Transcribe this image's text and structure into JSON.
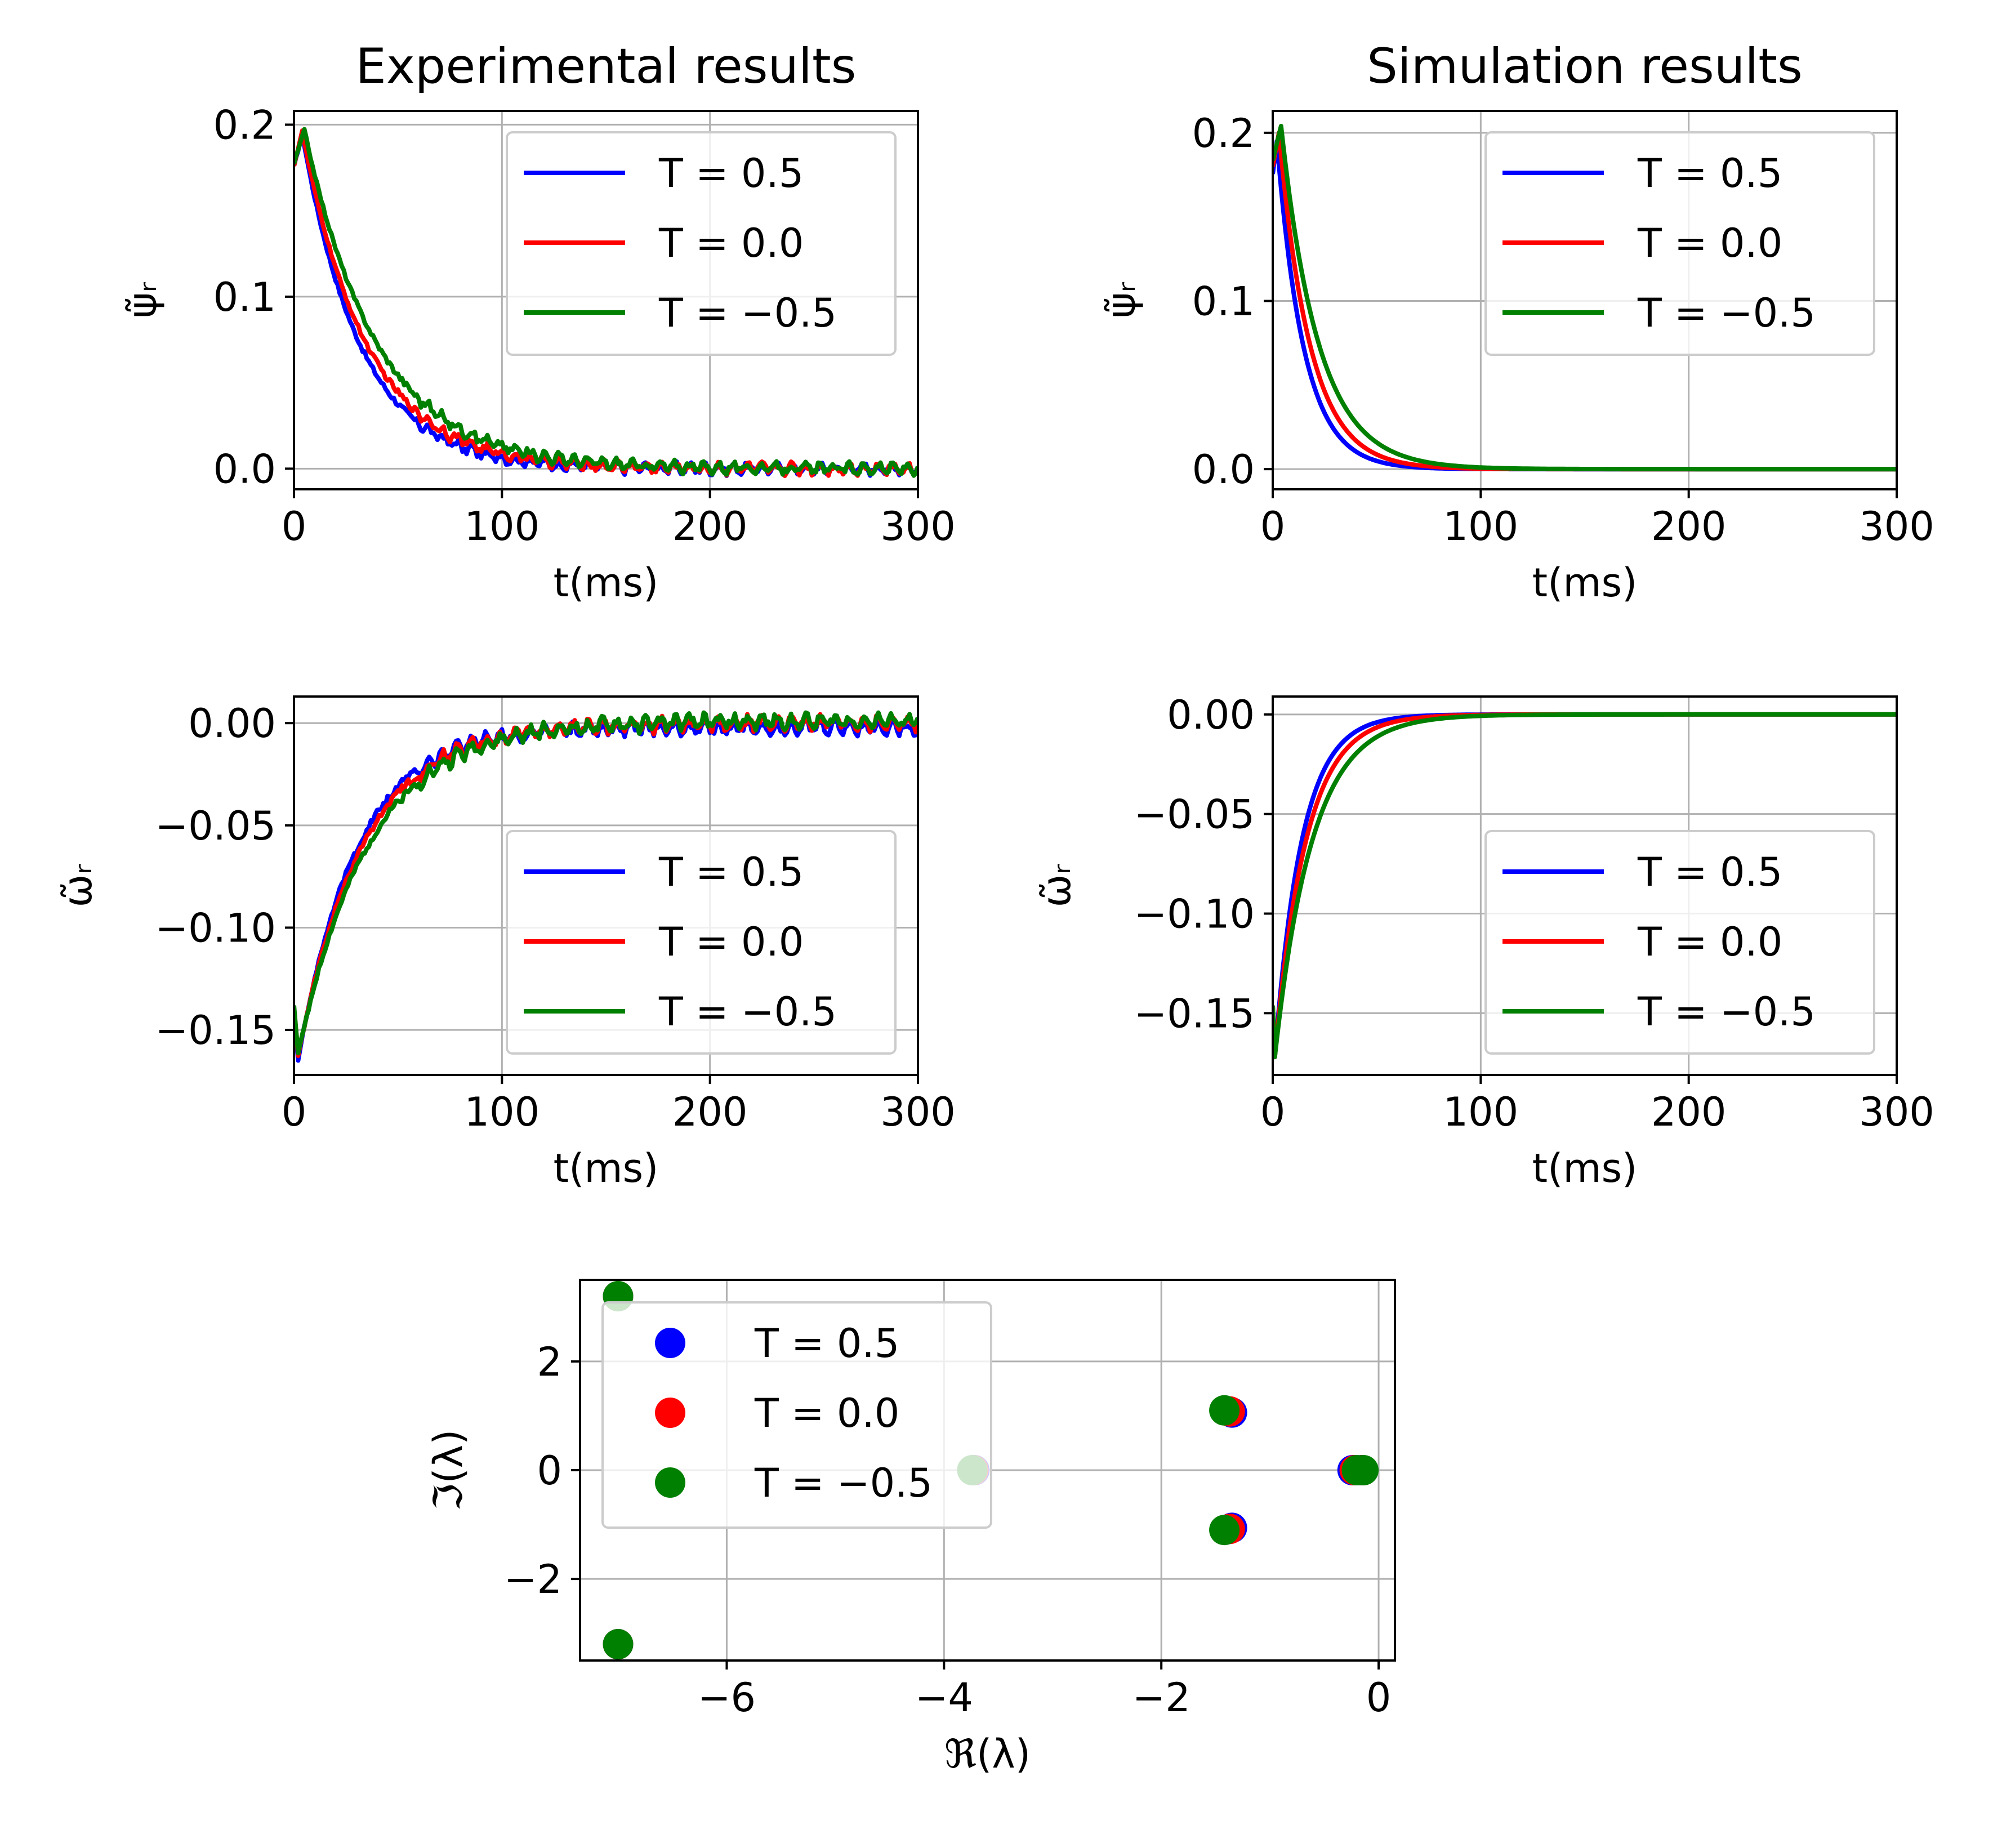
{
  "colors": {
    "blue": "#0000ff",
    "red": "#ff0000",
    "green": "#008000",
    "grid": "#b0b0b0"
  },
  "legend_entries": [
    "T = 0.5",
    "T = 0.0",
    "T = −0.5"
  ],
  "chart_data": [
    {
      "id": "exp_psi",
      "type": "line",
      "title": "Experimental results",
      "xlabel": "t(ms)",
      "ylabel": "ψ̃ᵣ",
      "xlim": [
        0,
        300
      ],
      "ylim": [
        -0.012,
        0.208
      ],
      "xticks": [
        0,
        100,
        200,
        300
      ],
      "yticks": [
        0.0,
        0.1,
        0.2
      ],
      "ytick_labels": [
        "0.0",
        "0.1",
        "0.2"
      ],
      "legend_loc": "upper right",
      "grid": true,
      "noise": 0.002,
      "series": [
        {
          "name": "T = 0.5",
          "color": "#0000ff",
          "kind": "decay",
          "amp": 0.195,
          "tau": 28,
          "peak_t": 4
        },
        {
          "name": "T = 0.0",
          "color": "#ff0000",
          "kind": "decay",
          "amp": 0.196,
          "tau": 31,
          "peak_t": 4
        },
        {
          "name": "T = −0.5",
          "color": "#008000",
          "kind": "decay",
          "amp": 0.197,
          "tau": 35,
          "peak_t": 5
        }
      ]
    },
    {
      "id": "sim_psi",
      "type": "line",
      "title": "Simulation results",
      "xlabel": "t(ms)",
      "ylabel": "ψ̃ᵣ",
      "xlim": [
        0,
        300
      ],
      "ylim": [
        -0.012,
        0.213
      ],
      "xticks": [
        0,
        100,
        200,
        300
      ],
      "yticks": [
        0.0,
        0.1,
        0.2
      ],
      "ytick_labels": [
        "0.0",
        "0.1",
        "0.2"
      ],
      "legend_loc": "upper right",
      "grid": true,
      "noise": 0,
      "series": [
        {
          "name": "T = 0.5",
          "color": "#0000ff",
          "kind": "decay",
          "amp": 0.195,
          "tau": 13,
          "peak_t": 2
        },
        {
          "name": "T = 0.0",
          "color": "#ff0000",
          "kind": "decay",
          "amp": 0.2,
          "tau": 15,
          "peak_t": 3
        },
        {
          "name": "T = −0.5",
          "color": "#008000",
          "kind": "decay",
          "amp": 0.204,
          "tau": 18,
          "peak_t": 4
        }
      ]
    },
    {
      "id": "exp_omega",
      "type": "line",
      "xlabel": "t(ms)",
      "ylabel": "ω̃ᵣ",
      "xlim": [
        0,
        300
      ],
      "ylim": [
        -0.172,
        0.013
      ],
      "xticks": [
        0,
        100,
        200,
        300
      ],
      "yticks": [
        -0.15,
        -0.1,
        -0.05,
        0.0
      ],
      "ytick_labels": [
        "−0.15",
        "−0.10",
        "−0.05",
        "0.00"
      ],
      "legend_loc": "lower right",
      "grid": true,
      "noise": 0.0022,
      "series": [
        {
          "name": "T = 0.5",
          "color": "#0000ff",
          "kind": "rise",
          "min": -0.165,
          "tau": 28,
          "min_t": 2,
          "offset": -0.002
        },
        {
          "name": "T = 0.0",
          "color": "#ff0000",
          "kind": "rise",
          "min": -0.163,
          "tau": 31,
          "min_t": 2,
          "offset": 0.0
        },
        {
          "name": "T = −0.5",
          "color": "#008000",
          "kind": "rise",
          "min": -0.162,
          "tau": 34,
          "min_t": 2,
          "offset": 0.001
        }
      ]
    },
    {
      "id": "sim_omega",
      "type": "line",
      "xlabel": "t(ms)",
      "ylabel": "ω̃ᵣ",
      "xlim": [
        0,
        300
      ],
      "ylim": [
        -0.181,
        0.009
      ],
      "xticks": [
        0,
        100,
        200,
        300
      ],
      "yticks": [
        -0.15,
        -0.1,
        -0.05,
        0.0
      ],
      "ytick_labels": [
        "−0.15",
        "−0.10",
        "−0.05",
        "0.00"
      ],
      "legend_loc": "lower right",
      "grid": true,
      "noise": 0,
      "series": [
        {
          "name": "T = 0.5",
          "color": "#0000ff",
          "kind": "rise",
          "min": -0.172,
          "tau": 13,
          "min_t": 1,
          "offset": 0.0
        },
        {
          "name": "T = 0.0",
          "color": "#ff0000",
          "kind": "rise",
          "min": -0.172,
          "tau": 15,
          "min_t": 1,
          "offset": 0.0
        },
        {
          "name": "T = −0.5",
          "color": "#008000",
          "kind": "rise",
          "min": -0.172,
          "tau": 18,
          "min_t": 1,
          "offset": 0.0
        }
      ]
    },
    {
      "id": "eigen",
      "type": "scatter",
      "xlabel": "ℜ(λ)",
      "ylabel": "ℑ(λ)",
      "xlim": [
        -7.35,
        0.15
      ],
      "ylim": [
        -3.5,
        3.5
      ],
      "xticks": [
        -6,
        -4,
        -2,
        0
      ],
      "xtick_labels": [
        "−6",
        "−4",
        "−2",
        "0"
      ],
      "yticks": [
        -2,
        0,
        2
      ],
      "ytick_labels": [
        "−2",
        "0",
        "2"
      ],
      "legend_loc": "upper left",
      "grid": true,
      "series": [
        {
          "name": "T = 0.5",
          "color": "#0000ff",
          "points": [
            [
              -7.0,
              3.2
            ],
            [
              -7.0,
              -3.2
            ],
            [
              -3.72,
              0.0
            ],
            [
              -1.35,
              1.06
            ],
            [
              -1.35,
              -1.06
            ],
            [
              -0.24,
              0.0
            ],
            [
              -0.16,
              0.0
            ]
          ]
        },
        {
          "name": "T = 0.0",
          "color": "#ff0000",
          "points": [
            [
              -7.0,
              3.2
            ],
            [
              -7.0,
              -3.2
            ],
            [
              -3.73,
              0.0
            ],
            [
              -1.37,
              1.08
            ],
            [
              -1.37,
              -1.08
            ],
            [
              -0.22,
              0.0
            ],
            [
              -0.15,
              0.0
            ]
          ]
        },
        {
          "name": "T = −0.5",
          "color": "#008000",
          "points": [
            [
              -7.0,
              3.2
            ],
            [
              -7.0,
              -3.2
            ],
            [
              -3.74,
              0.0
            ],
            [
              -1.42,
              1.1
            ],
            [
              -1.42,
              -1.1
            ],
            [
              -0.2,
              0.0
            ],
            [
              -0.14,
              0.0
            ]
          ]
        }
      ]
    }
  ]
}
